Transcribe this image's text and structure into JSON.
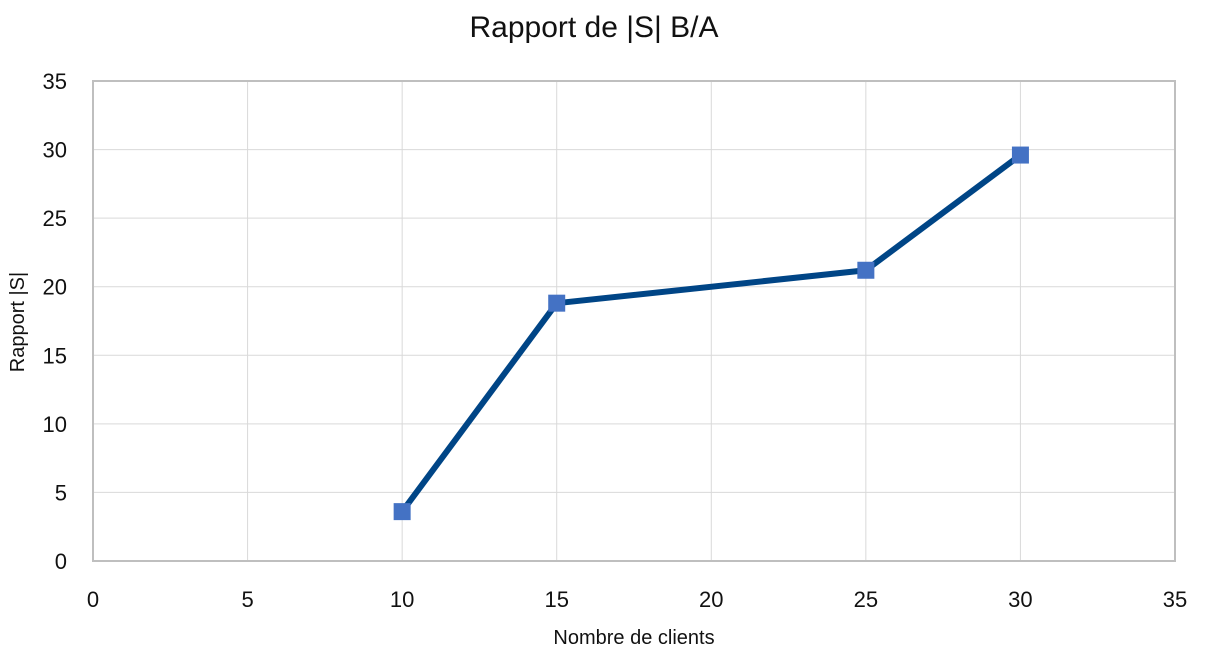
{
  "chart_data": {
    "type": "line",
    "title": "Rapport de |S| B/A",
    "xlabel": "Nombre de clients",
    "ylabel": "Rapport |S|",
    "xlim": [
      0,
      35
    ],
    "ylim": [
      0,
      35
    ],
    "xticks": [
      0,
      5,
      10,
      15,
      20,
      25,
      30,
      35
    ],
    "yticks": [
      0,
      5,
      10,
      15,
      20,
      25,
      30,
      35
    ],
    "grid": true,
    "series": [
      {
        "x": [
          10,
          15,
          25,
          30
        ],
        "y": [
          3.6,
          18.8,
          21.2,
          29.6
        ],
        "line_color": "#004586",
        "marker_color": "#4472C4",
        "marker": "square"
      }
    ]
  }
}
